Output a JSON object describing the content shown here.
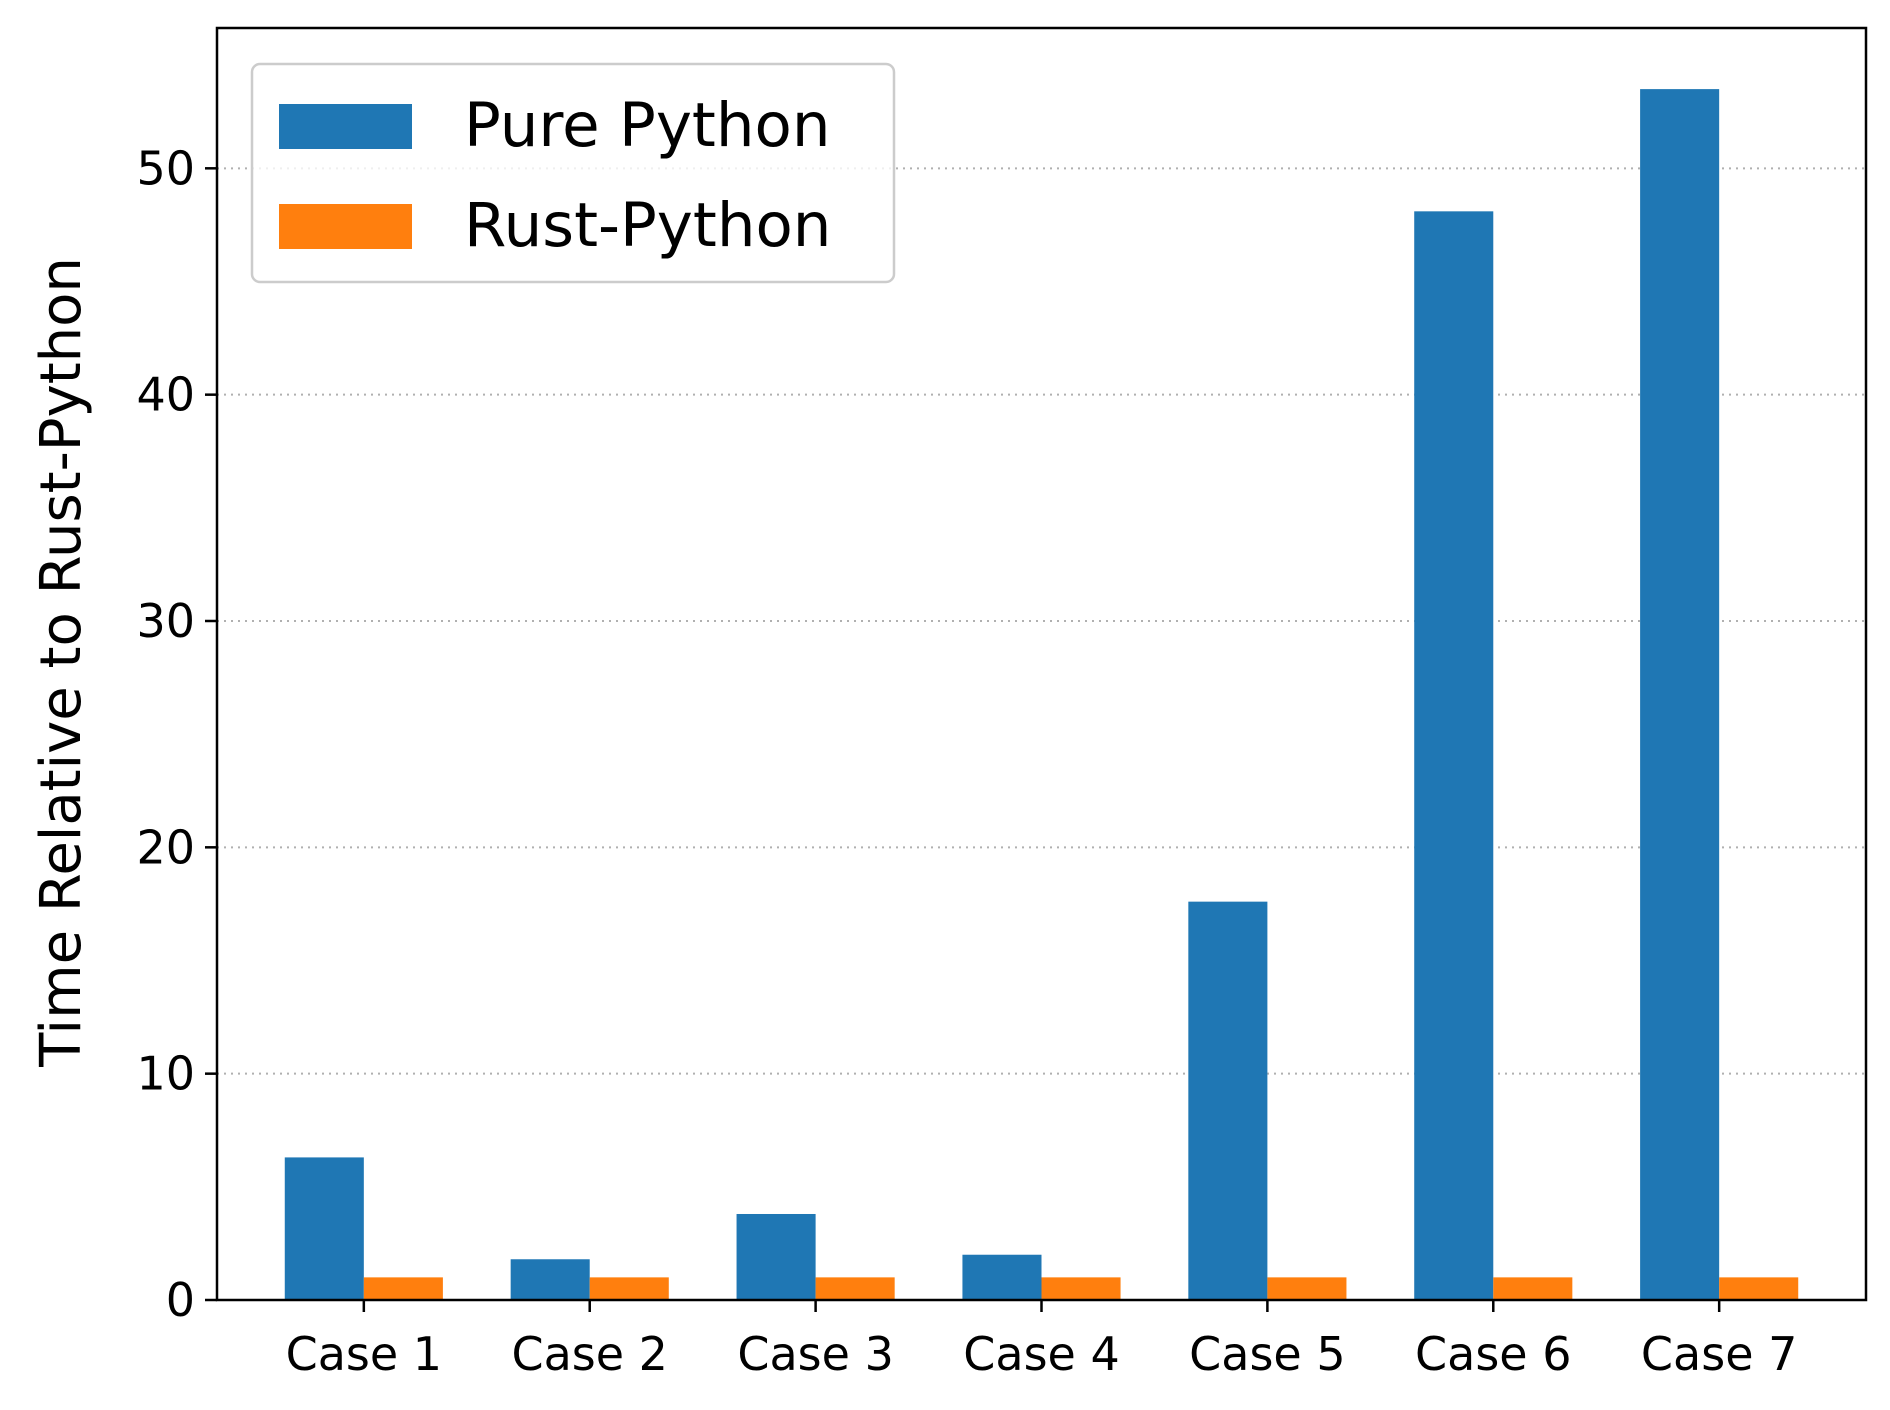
{
  "chart_data": {
    "type": "bar",
    "title": "",
    "xlabel": "",
    "ylabel": "Time Relative to Rust-Python",
    "categories": [
      "Case 1",
      "Case 2",
      "Case 3",
      "Case 4",
      "Case 5",
      "Case 6",
      "Case 7"
    ],
    "series": [
      {
        "name": "Pure Python",
        "color": "#1f77b4",
        "values": [
          6.3,
          1.8,
          3.8,
          2.0,
          17.6,
          48.1,
          53.5
        ]
      },
      {
        "name": "Rust-Python",
        "color": "#ff7f0e",
        "values": [
          1.0,
          1.0,
          1.0,
          1.0,
          1.0,
          1.0,
          1.0
        ]
      }
    ],
    "ylim": [
      0,
      56.2
    ],
    "yticks": [
      0,
      10,
      20,
      30,
      40,
      50
    ],
    "grid": {
      "y": true,
      "x": false,
      "style": "dotted"
    },
    "legend": {
      "position": "top-left"
    }
  }
}
